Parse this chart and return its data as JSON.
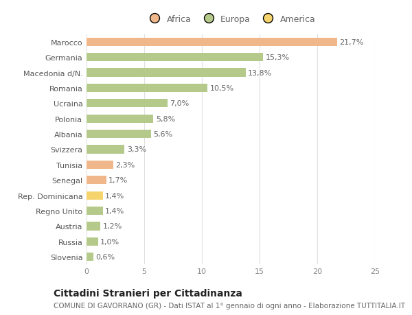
{
  "categories": [
    "Marocco",
    "Germania",
    "Macedonia d/N.",
    "Romania",
    "Ucraina",
    "Polonia",
    "Albania",
    "Svizzera",
    "Tunisia",
    "Senegal",
    "Rep. Dominicana",
    "Regno Unito",
    "Austria",
    "Russia",
    "Slovenia"
  ],
  "values": [
    21.7,
    15.3,
    13.8,
    10.5,
    7.0,
    5.8,
    5.6,
    3.3,
    2.3,
    1.7,
    1.4,
    1.4,
    1.2,
    1.0,
    0.6
  ],
  "labels": [
    "21,7%",
    "15,3%",
    "13,8%",
    "10,5%",
    "7,0%",
    "5,8%",
    "5,6%",
    "3,3%",
    "2,3%",
    "1,7%",
    "1,4%",
    "1,4%",
    "1,2%",
    "1,0%",
    "0,6%"
  ],
  "colors": [
    "#f0b88a",
    "#b5c98a",
    "#b5c98a",
    "#b5c98a",
    "#b5c98a",
    "#b5c98a",
    "#b5c98a",
    "#b5c98a",
    "#f0b88a",
    "#f0b88a",
    "#f5d46e",
    "#b5c98a",
    "#b5c98a",
    "#b5c98a",
    "#b5c98a"
  ],
  "legend_labels": [
    "Africa",
    "Europa",
    "America"
  ],
  "legend_colors": [
    "#f0b88a",
    "#b5c98a",
    "#f5d46e"
  ],
  "title": "Cittadini Stranieri per Cittadinanza",
  "subtitle": "COMUNE DI GAVORRANO (GR) - Dati ISTAT al 1° gennaio di ogni anno - Elaborazione TUTTITALIA.IT",
  "xlim": [
    0,
    25
  ],
  "xticks": [
    0,
    5,
    10,
    15,
    20,
    25
  ],
  "background_color": "#ffffff",
  "grid_color": "#e0e0e0",
  "bar_height": 0.55,
  "title_fontsize": 10,
  "subtitle_fontsize": 7.5,
  "label_fontsize": 8,
  "tick_fontsize": 8,
  "legend_fontsize": 9
}
